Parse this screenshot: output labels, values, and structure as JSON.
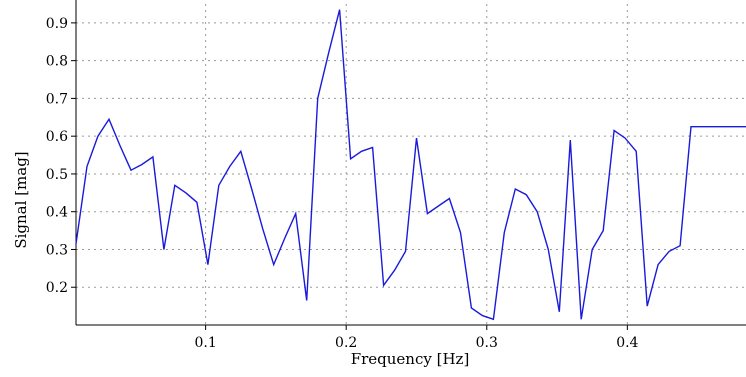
{
  "chart_data": {
    "type": "line",
    "xlabel": "Frequency [Hz]",
    "ylabel": "Signal [mag]",
    "xlim": [
      0.0078,
      0.4844
    ],
    "ylim": [
      0.1,
      0.95
    ],
    "x_ticks": [
      0.1,
      0.2,
      0.3,
      0.4
    ],
    "x_tick_labels": [
      "0.1",
      "0.2",
      "0.3",
      "0.4"
    ],
    "y_ticks": [
      0.2,
      0.3,
      0.4,
      0.5,
      0.6,
      0.7,
      0.8,
      0.9
    ],
    "y_tick_labels": [
      "0.2",
      "0.3",
      "0.4",
      "0.5",
      "0.6",
      "0.7",
      "0.8",
      "0.9"
    ],
    "grid": "dotted",
    "colors": {
      "line": "#1a1adc",
      "grid": "#9a9a9a",
      "axis": "#000000"
    },
    "series": [
      {
        "x": [
          0.0078,
          0.0156,
          0.0234,
          0.0313,
          0.0391,
          0.0469,
          0.0547,
          0.0625,
          0.0703,
          0.0781,
          0.0859,
          0.0938,
          0.1016,
          0.1094,
          0.1172,
          0.125,
          0.1328,
          0.1406,
          0.1484,
          0.1563,
          0.1641,
          0.1719,
          0.1797,
          0.1875,
          0.1953,
          0.2031,
          0.2109,
          0.2188,
          0.2266,
          0.2344,
          0.2422,
          0.25,
          0.2578,
          0.2656,
          0.2734,
          0.2813,
          0.2891,
          0.2969,
          0.3047,
          0.3125,
          0.3203,
          0.3281,
          0.3359,
          0.3438,
          0.3516,
          0.3594,
          0.3672,
          0.375,
          0.3828,
          0.3906,
          0.3984,
          0.4063,
          0.4141,
          0.4219,
          0.4297,
          0.4375,
          0.4453,
          0.4531,
          0.4609,
          0.4688,
          0.4766,
          0.4844
        ],
        "y": [
          0.315,
          0.52,
          0.6,
          0.645,
          0.575,
          0.51,
          0.525,
          0.545,
          0.3,
          0.47,
          0.45,
          0.425,
          0.26,
          0.47,
          0.52,
          0.56,
          0.46,
          0.355,
          0.26,
          0.33,
          0.395,
          0.165,
          0.7,
          0.82,
          0.935,
          0.54,
          0.56,
          0.57,
          0.205,
          0.245,
          0.295,
          0.595,
          0.395,
          0.415,
          0.435,
          0.345,
          0.145,
          0.125,
          0.115,
          0.345,
          0.46,
          0.445,
          0.4,
          0.3,
          0.135,
          0.59,
          0.115,
          0.3,
          0.35,
          0.615,
          0.595,
          0.56,
          0.15,
          0.26,
          0.295,
          0.31,
          0.625,
          0.625,
          0.625,
          0.625,
          0.625,
          0.625
        ]
      }
    ]
  }
}
